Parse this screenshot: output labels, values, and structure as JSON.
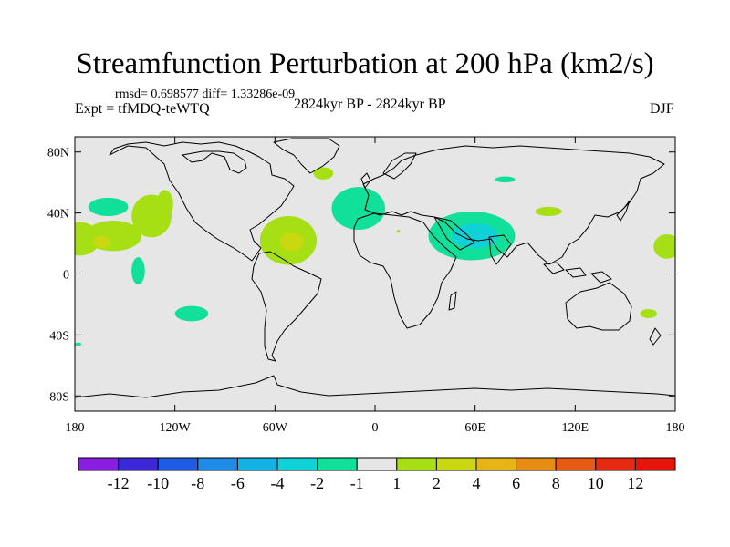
{
  "chart_data": {
    "type": "heatmap",
    "title": "Streamfunction Perturbation at 200 hPa (km2/s)",
    "subtitle_stats": "rmsd= 0.698577 diff= 1.33286e-09",
    "left_label": "Expt = tfMDQ-teWTQ",
    "center_label": "2824kyr BP - 2824kyr BP",
    "right_label": "DJF",
    "projection": "cylindrical equidistant",
    "xlim": [
      -180,
      180
    ],
    "ylim": [
      -90,
      90
    ],
    "x_ticks": [
      -180,
      -120,
      -60,
      0,
      60,
      120,
      180
    ],
    "x_tick_labels": [
      "180",
      "120W",
      "60W",
      "0",
      "60E",
      "120E",
      "180"
    ],
    "y_ticks": [
      80,
      40,
      0,
      -40,
      -80
    ],
    "y_tick_labels": [
      "80N",
      "40N",
      "0",
      "40S",
      "80S"
    ],
    "colorbar": {
      "labels": [
        "-12",
        "-10",
        "-8",
        "-6",
        "-4",
        "-2",
        "-1",
        "1",
        "2",
        "4",
        "6",
        "8",
        "10",
        "12"
      ],
      "colors": [
        "#8a1ee0",
        "#3c28d8",
        "#1e5ce6",
        "#1e8ce6",
        "#12b2e6",
        "#0fd2d8",
        "#10e09a",
        "#e6e6e6",
        "#a6e014",
        "#cad812",
        "#e6b414",
        "#e68c12",
        "#e65a12",
        "#e62a12",
        "#e6140a"
      ]
    },
    "background_level": "-1 to 1",
    "anomalies": [
      {
        "lon": -160,
        "lat": 44,
        "rx": 12,
        "ry": 6,
        "level": "-2 to -1"
      },
      {
        "lon": -177,
        "lat": 23,
        "rx": 12,
        "ry": 11,
        "level": "1 to 2"
      },
      {
        "lon": -157,
        "lat": 25,
        "rx": 17,
        "ry": 10,
        "level": "1 to 2"
      },
      {
        "lon": -164,
        "lat": 21,
        "rx": 5,
        "ry": 4,
        "level": "2 to 4"
      },
      {
        "lon": -134,
        "lat": 38,
        "rx": 12,
        "ry": 14,
        "level": "1 to 2"
      },
      {
        "lon": -126,
        "lat": 46,
        "rx": 5,
        "ry": 9,
        "level": "1 to 2"
      },
      {
        "lon": -142,
        "lat": 2,
        "rx": 4,
        "ry": 9,
        "level": "-2 to -1"
      },
      {
        "lon": -110,
        "lat": -26,
        "rx": 10,
        "ry": 5,
        "level": "-2 to -1"
      },
      {
        "lon": -52,
        "lat": 22,
        "rx": 17,
        "ry": 16,
        "level": "1 to 2"
      },
      {
        "lon": -50,
        "lat": 21,
        "rx": 7,
        "ry": 6,
        "level": "2 to 4"
      },
      {
        "lon": -31,
        "lat": 66,
        "rx": 6,
        "ry": 4,
        "level": "1 to 2"
      },
      {
        "lon": -10,
        "lat": 43,
        "rx": 16,
        "ry": 14,
        "level": "-2 to -1"
      },
      {
        "lon": 58,
        "lat": 25,
        "rx": 26,
        "ry": 16,
        "level": "-2 to -1"
      },
      {
        "lon": 60,
        "lat": 25,
        "rx": 14,
        "ry": 8,
        "level": "-4 to -2"
      },
      {
        "lon": 78,
        "lat": 62,
        "rx": 6,
        "ry": 2,
        "level": "-2 to -1"
      },
      {
        "lon": 104,
        "lat": 41,
        "rx": 8,
        "ry": 3,
        "level": "1 to 2"
      },
      {
        "lon": 175,
        "lat": 18,
        "rx": 8,
        "ry": 8,
        "level": "1 to 2"
      },
      {
        "lon": 164,
        "lat": -26,
        "rx": 5,
        "ry": 3,
        "level": "1 to 2"
      },
      {
        "lon": -178,
        "lat": -46,
        "rx": 2,
        "ry": 1,
        "level": "-2 to -1"
      },
      {
        "lon": 14,
        "lat": 28,
        "rx": 1,
        "ry": 1,
        "level": "1 to 2"
      }
    ]
  }
}
